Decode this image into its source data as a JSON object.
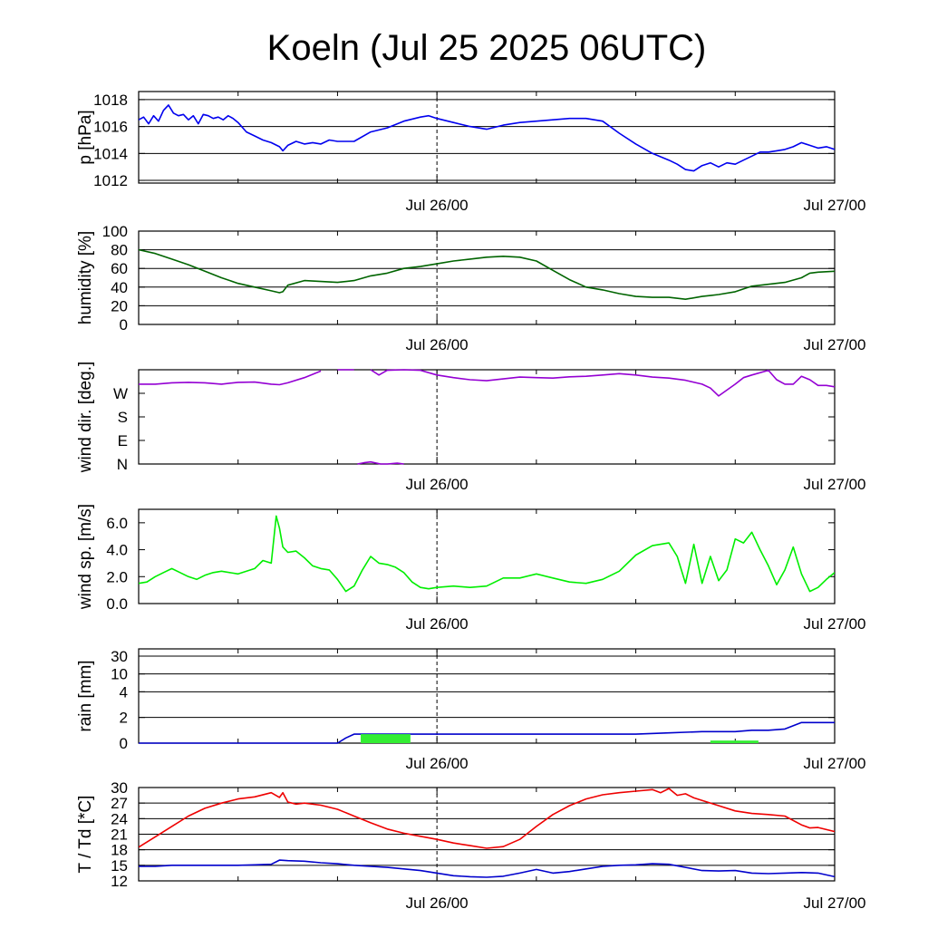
{
  "title": "Koeln (Jul 25 2025 06UTC)",
  "x_tick_labels": [
    "Jul 26/00",
    "Jul 27/00"
  ],
  "colors": {
    "pressure": "#0000ee",
    "humidity": "#006400",
    "wind_dir": "#9400d3",
    "wind_speed": "#00ee00",
    "rain_line": "#0000cc",
    "rain_bars": "#33ee33",
    "temperature": "#ee0000",
    "dewpoint": "#0000cc",
    "grid": "#000000"
  },
  "chart_data": [
    {
      "type": "line",
      "ylabel": "p [hPa]",
      "x_unit": "hours since Jul 25 06UTC",
      "xlim": [
        0,
        42
      ],
      "ylim": [
        1011.8,
        1018.6
      ],
      "yticks": [
        1012,
        1014,
        1016,
        1018
      ],
      "ytick_labels": [
        "1012",
        "1014",
        "1016",
        "1018"
      ],
      "grid": true,
      "series": [
        {
          "name": "pressure",
          "x": [
            0,
            0.3,
            0.6,
            0.9,
            1.2,
            1.5,
            1.8,
            2.1,
            2.4,
            2.7,
            3.0,
            3.3,
            3.6,
            3.9,
            4.2,
            4.5,
            4.8,
            5.1,
            5.4,
            5.7,
            6,
            6.5,
            7,
            7.5,
            8,
            8.5,
            8.7,
            9,
            9.5,
            10,
            10.5,
            11,
            11.5,
            12,
            13,
            14,
            15,
            16,
            17,
            17.5,
            18,
            19,
            20,
            21,
            22,
            23,
            24,
            25,
            26,
            27,
            28,
            29,
            30,
            31,
            32,
            32.5,
            33,
            33.5,
            34,
            34.5,
            35,
            35.5,
            36,
            36.5,
            37,
            37.5,
            38,
            38.5,
            39,
            39.5,
            40,
            40.5,
            41,
            41.5,
            42
          ],
          "y": [
            1016.5,
            1016.7,
            1016.2,
            1016.8,
            1016.4,
            1017.2,
            1017.6,
            1017.0,
            1016.8,
            1016.9,
            1016.5,
            1016.8,
            1016.2,
            1016.9,
            1016.8,
            1016.6,
            1016.7,
            1016.5,
            1016.8,
            1016.6,
            1016.3,
            1015.6,
            1015.3,
            1015.0,
            1014.8,
            1014.5,
            1014.2,
            1014.6,
            1014.9,
            1014.7,
            1014.8,
            1014.7,
            1015.0,
            1014.9,
            1014.9,
            1015.6,
            1015.9,
            1016.4,
            1016.7,
            1016.8,
            1016.6,
            1016.3,
            1016.0,
            1015.8,
            1016.1,
            1016.3,
            1016.4,
            1016.5,
            1016.6,
            1016.6,
            1016.4,
            1015.5,
            1014.7,
            1014.0,
            1013.5,
            1013.2,
            1012.8,
            1012.7,
            1013.1,
            1013.3,
            1013.0,
            1013.3,
            1013.2,
            1013.5,
            1013.8,
            1014.1,
            1014.1,
            1014.2,
            1014.3,
            1014.5,
            1014.8,
            1014.6,
            1014.4,
            1014.5,
            1014.3
          ]
        }
      ]
    },
    {
      "type": "line",
      "ylabel": "humidity [%]",
      "xlim": [
        0,
        42
      ],
      "ylim": [
        0,
        100
      ],
      "yticks": [
        0,
        20,
        40,
        60,
        80,
        100
      ],
      "ytick_labels": [
        "0",
        "20",
        "40",
        "60",
        "80",
        "100"
      ],
      "grid": true,
      "series": [
        {
          "name": "humidity",
          "x": [
            0,
            1,
            2,
            3,
            4,
            5,
            6,
            7,
            8,
            8.5,
            8.7,
            9,
            10,
            11,
            12,
            13,
            14,
            15,
            16,
            17,
            18,
            19,
            20,
            21,
            22,
            23,
            24,
            25,
            26,
            27,
            28,
            29,
            30,
            31,
            32,
            33,
            34,
            34.5,
            35,
            36,
            37,
            38,
            39,
            40,
            40.5,
            41,
            42
          ],
          "y": [
            80,
            76,
            70,
            64,
            57,
            50,
            44,
            40,
            36,
            34,
            35,
            42,
            47,
            46,
            45,
            47,
            52,
            55,
            60,
            62,
            65,
            68,
            70,
            72,
            73,
            72,
            68,
            58,
            48,
            40,
            37,
            33,
            30,
            29,
            29,
            27,
            30,
            31,
            32,
            35,
            41,
            43,
            45,
            50,
            55,
            56,
            57
          ]
        }
      ]
    },
    {
      "type": "line",
      "ylabel": "wind dir. [deg.]",
      "xlim": [
        0,
        42
      ],
      "ylim": [
        0,
        360
      ],
      "yticks": [
        0,
        90,
        180,
        270
      ],
      "ytick_labels": [
        "N",
        "E",
        "S",
        "W"
      ],
      "grid": false,
      "series": [
        {
          "name": "wind_dir",
          "x": [
            0,
            1,
            2,
            3,
            4,
            5,
            6,
            7,
            8,
            8.5,
            9,
            10,
            11,
            12,
            13,
            14,
            14.5,
            15,
            16,
            17,
            18,
            19,
            20,
            21,
            22,
            23,
            24,
            25,
            26,
            27,
            28,
            29,
            30,
            31,
            32,
            33,
            34,
            34.5,
            35,
            36,
            36.5,
            37,
            38,
            38.5,
            39,
            39.5,
            40,
            40.5,
            41,
            41.5,
            42
          ],
          "y": [
            305,
            305,
            310,
            312,
            310,
            305,
            312,
            313,
            305,
            303,
            310,
            330,
            355,
            360,
            360,
            360,
            340,
            358,
            360,
            358,
            340,
            330,
            322,
            318,
            325,
            332,
            330,
            328,
            333,
            335,
            340,
            345,
            340,
            332,
            328,
            320,
            305,
            290,
            260,
            305,
            330,
            340,
            358,
            322,
            305,
            305,
            335,
            322,
            300,
            300,
            295
          ],
          "breaks": [
            11.6,
            14.0
          ]
        },
        {
          "name": "wind_dir_wrap",
          "x": [
            13.2,
            13.6,
            14.0,
            14.6,
            15.0,
            15.6,
            16.0
          ],
          "y": [
            0,
            5,
            8,
            0,
            0,
            3,
            0
          ]
        }
      ]
    },
    {
      "type": "line",
      "ylabel": "wind sp. [m/s]",
      "xlim": [
        0,
        42
      ],
      "ylim": [
        0,
        7
      ],
      "yticks": [
        0,
        2,
        4,
        6
      ],
      "ytick_labels": [
        "0.0",
        "2.0",
        "4.0",
        "6.0"
      ],
      "grid": false,
      "series": [
        {
          "name": "wind_speed",
          "x": [
            0,
            0.5,
            1,
            1.5,
            2,
            2.5,
            3,
            3.5,
            4,
            4.5,
            5,
            6,
            7,
            7.5,
            8,
            8.3,
            8.5,
            8.7,
            9,
            9.5,
            10,
            10.5,
            11,
            11.5,
            12,
            12.5,
            13,
            13.5,
            14,
            14.5,
            15,
            15.5,
            16,
            16.5,
            17,
            17.5,
            18,
            19,
            20,
            21,
            22,
            23,
            24,
            25,
            26,
            27,
            28,
            29,
            30,
            31,
            32,
            32.5,
            33,
            33.5,
            34,
            34.5,
            35,
            35.5,
            36,
            36.5,
            37,
            37.5,
            38,
            38.5,
            39,
            39.5,
            40,
            40.5,
            41,
            41.5,
            42
          ],
          "y": [
            1.5,
            1.6,
            2.0,
            2.3,
            2.6,
            2.3,
            2.0,
            1.8,
            2.1,
            2.3,
            2.4,
            2.2,
            2.6,
            3.2,
            3.0,
            6.5,
            5.6,
            4.2,
            3.8,
            3.9,
            3.4,
            2.8,
            2.6,
            2.5,
            1.8,
            0.9,
            1.3,
            2.5,
            3.5,
            3.0,
            2.9,
            2.7,
            2.3,
            1.6,
            1.2,
            1.1,
            1.2,
            1.3,
            1.2,
            1.3,
            1.9,
            1.9,
            2.2,
            1.9,
            1.6,
            1.5,
            1.8,
            2.4,
            3.6,
            4.3,
            4.5,
            3.5,
            1.5,
            4.4,
            1.5,
            3.5,
            1.7,
            2.5,
            4.8,
            4.5,
            5.3,
            4.0,
            2.8,
            1.4,
            2.5,
            4.2,
            2.2,
            0.9,
            1.2,
            1.8,
            2.3
          ]
        }
      ]
    },
    {
      "type": "line",
      "ylabel": "rain [mm]",
      "xlim": [
        0,
        42
      ],
      "scale": "nonlinear",
      "ytick_values": [
        0,
        2,
        4,
        10,
        30
      ],
      "ytick_labels": [
        "0",
        "2",
        "4",
        "10",
        "30"
      ],
      "grid": true,
      "series": [
        {
          "name": "rain_accum",
          "x": [
            0,
            12,
            12.5,
            13,
            14,
            15,
            16,
            17,
            18,
            19,
            20,
            21,
            22,
            23,
            24,
            25,
            26,
            27,
            28,
            30,
            32,
            34,
            36,
            37,
            38,
            39,
            40,
            41,
            42
          ],
          "y": [
            0,
            0,
            0.4,
            0.7,
            0.7,
            0.7,
            0.7,
            0.7,
            0.7,
            0.7,
            0.7,
            0.7,
            0.7,
            0.7,
            0.7,
            0.7,
            0.7,
            0.7,
            0.7,
            0.7,
            0.8,
            0.9,
            0.9,
            1.0,
            1.0,
            1.1,
            1.6,
            1.6,
            1.6
          ]
        },
        {
          "name": "rain_bars",
          "type": "bar",
          "x_start": [
            13.4,
            34.5
          ],
          "x_end": [
            16.4,
            37.4
          ],
          "y": [
            0.7,
            0.2
          ]
        }
      ]
    },
    {
      "type": "line",
      "ylabel": "T / Td [*C]",
      "xlim": [
        0,
        42
      ],
      "ylim": [
        12,
        30
      ],
      "yticks": [
        12,
        15,
        18,
        21,
        24,
        27,
        30
      ],
      "ytick_labels": [
        "12",
        "15",
        "18",
        "21",
        "24",
        "27",
        "30"
      ],
      "grid": true,
      "series": [
        {
          "name": "T",
          "x": [
            0,
            1,
            2,
            3,
            4,
            5,
            6,
            7,
            8,
            8.5,
            8.7,
            9,
            9.5,
            10,
            11,
            12,
            13,
            14,
            15,
            16,
            17,
            18,
            19,
            20,
            21,
            22,
            23,
            24,
            25,
            26,
            27,
            28,
            29,
            30,
            31,
            31.5,
            32,
            32.5,
            33,
            33.5,
            34,
            35,
            36,
            37,
            38,
            39,
            40,
            40.5,
            41,
            42
          ],
          "y": [
            18.5,
            20.5,
            22.5,
            24.5,
            26,
            27,
            27.8,
            28.2,
            29.0,
            28.1,
            29.0,
            27.2,
            26.8,
            27.0,
            26.6,
            25.8,
            24.5,
            23.2,
            22.0,
            21.2,
            20.6,
            20.0,
            19.3,
            18.8,
            18.3,
            18.6,
            20.0,
            22.5,
            24.8,
            26.5,
            27.8,
            28.6,
            29.0,
            29.3,
            29.6,
            29.0,
            29.8,
            28.5,
            28.8,
            28.0,
            27.5,
            26.5,
            25.5,
            25.0,
            24.8,
            24.5,
            22.8,
            22.2,
            22.3,
            21.5
          ]
        },
        {
          "name": "Td",
          "x": [
            0,
            1,
            2,
            3,
            4,
            5,
            6,
            7,
            8,
            8.5,
            9,
            10,
            11,
            12,
            13,
            14,
            15,
            16,
            17,
            18,
            19,
            20,
            21,
            22,
            23,
            24,
            25,
            26,
            27,
            28,
            29,
            30,
            31,
            32,
            33,
            34,
            35,
            36,
            37,
            38,
            39,
            40,
            41,
            42
          ],
          "y": [
            14.8,
            14.8,
            15.0,
            15.0,
            15.0,
            15.0,
            15.0,
            15.1,
            15.2,
            16.0,
            15.9,
            15.8,
            15.5,
            15.3,
            15.0,
            14.8,
            14.6,
            14.3,
            14.0,
            13.5,
            13.0,
            12.8,
            12.7,
            12.9,
            13.5,
            14.2,
            13.5,
            13.8,
            14.3,
            14.8,
            15.0,
            15.1,
            15.3,
            15.2,
            14.6,
            14.0,
            13.9,
            14.0,
            13.5,
            13.4,
            13.5,
            13.6,
            13.5,
            12.8
          ]
        }
      ]
    }
  ]
}
